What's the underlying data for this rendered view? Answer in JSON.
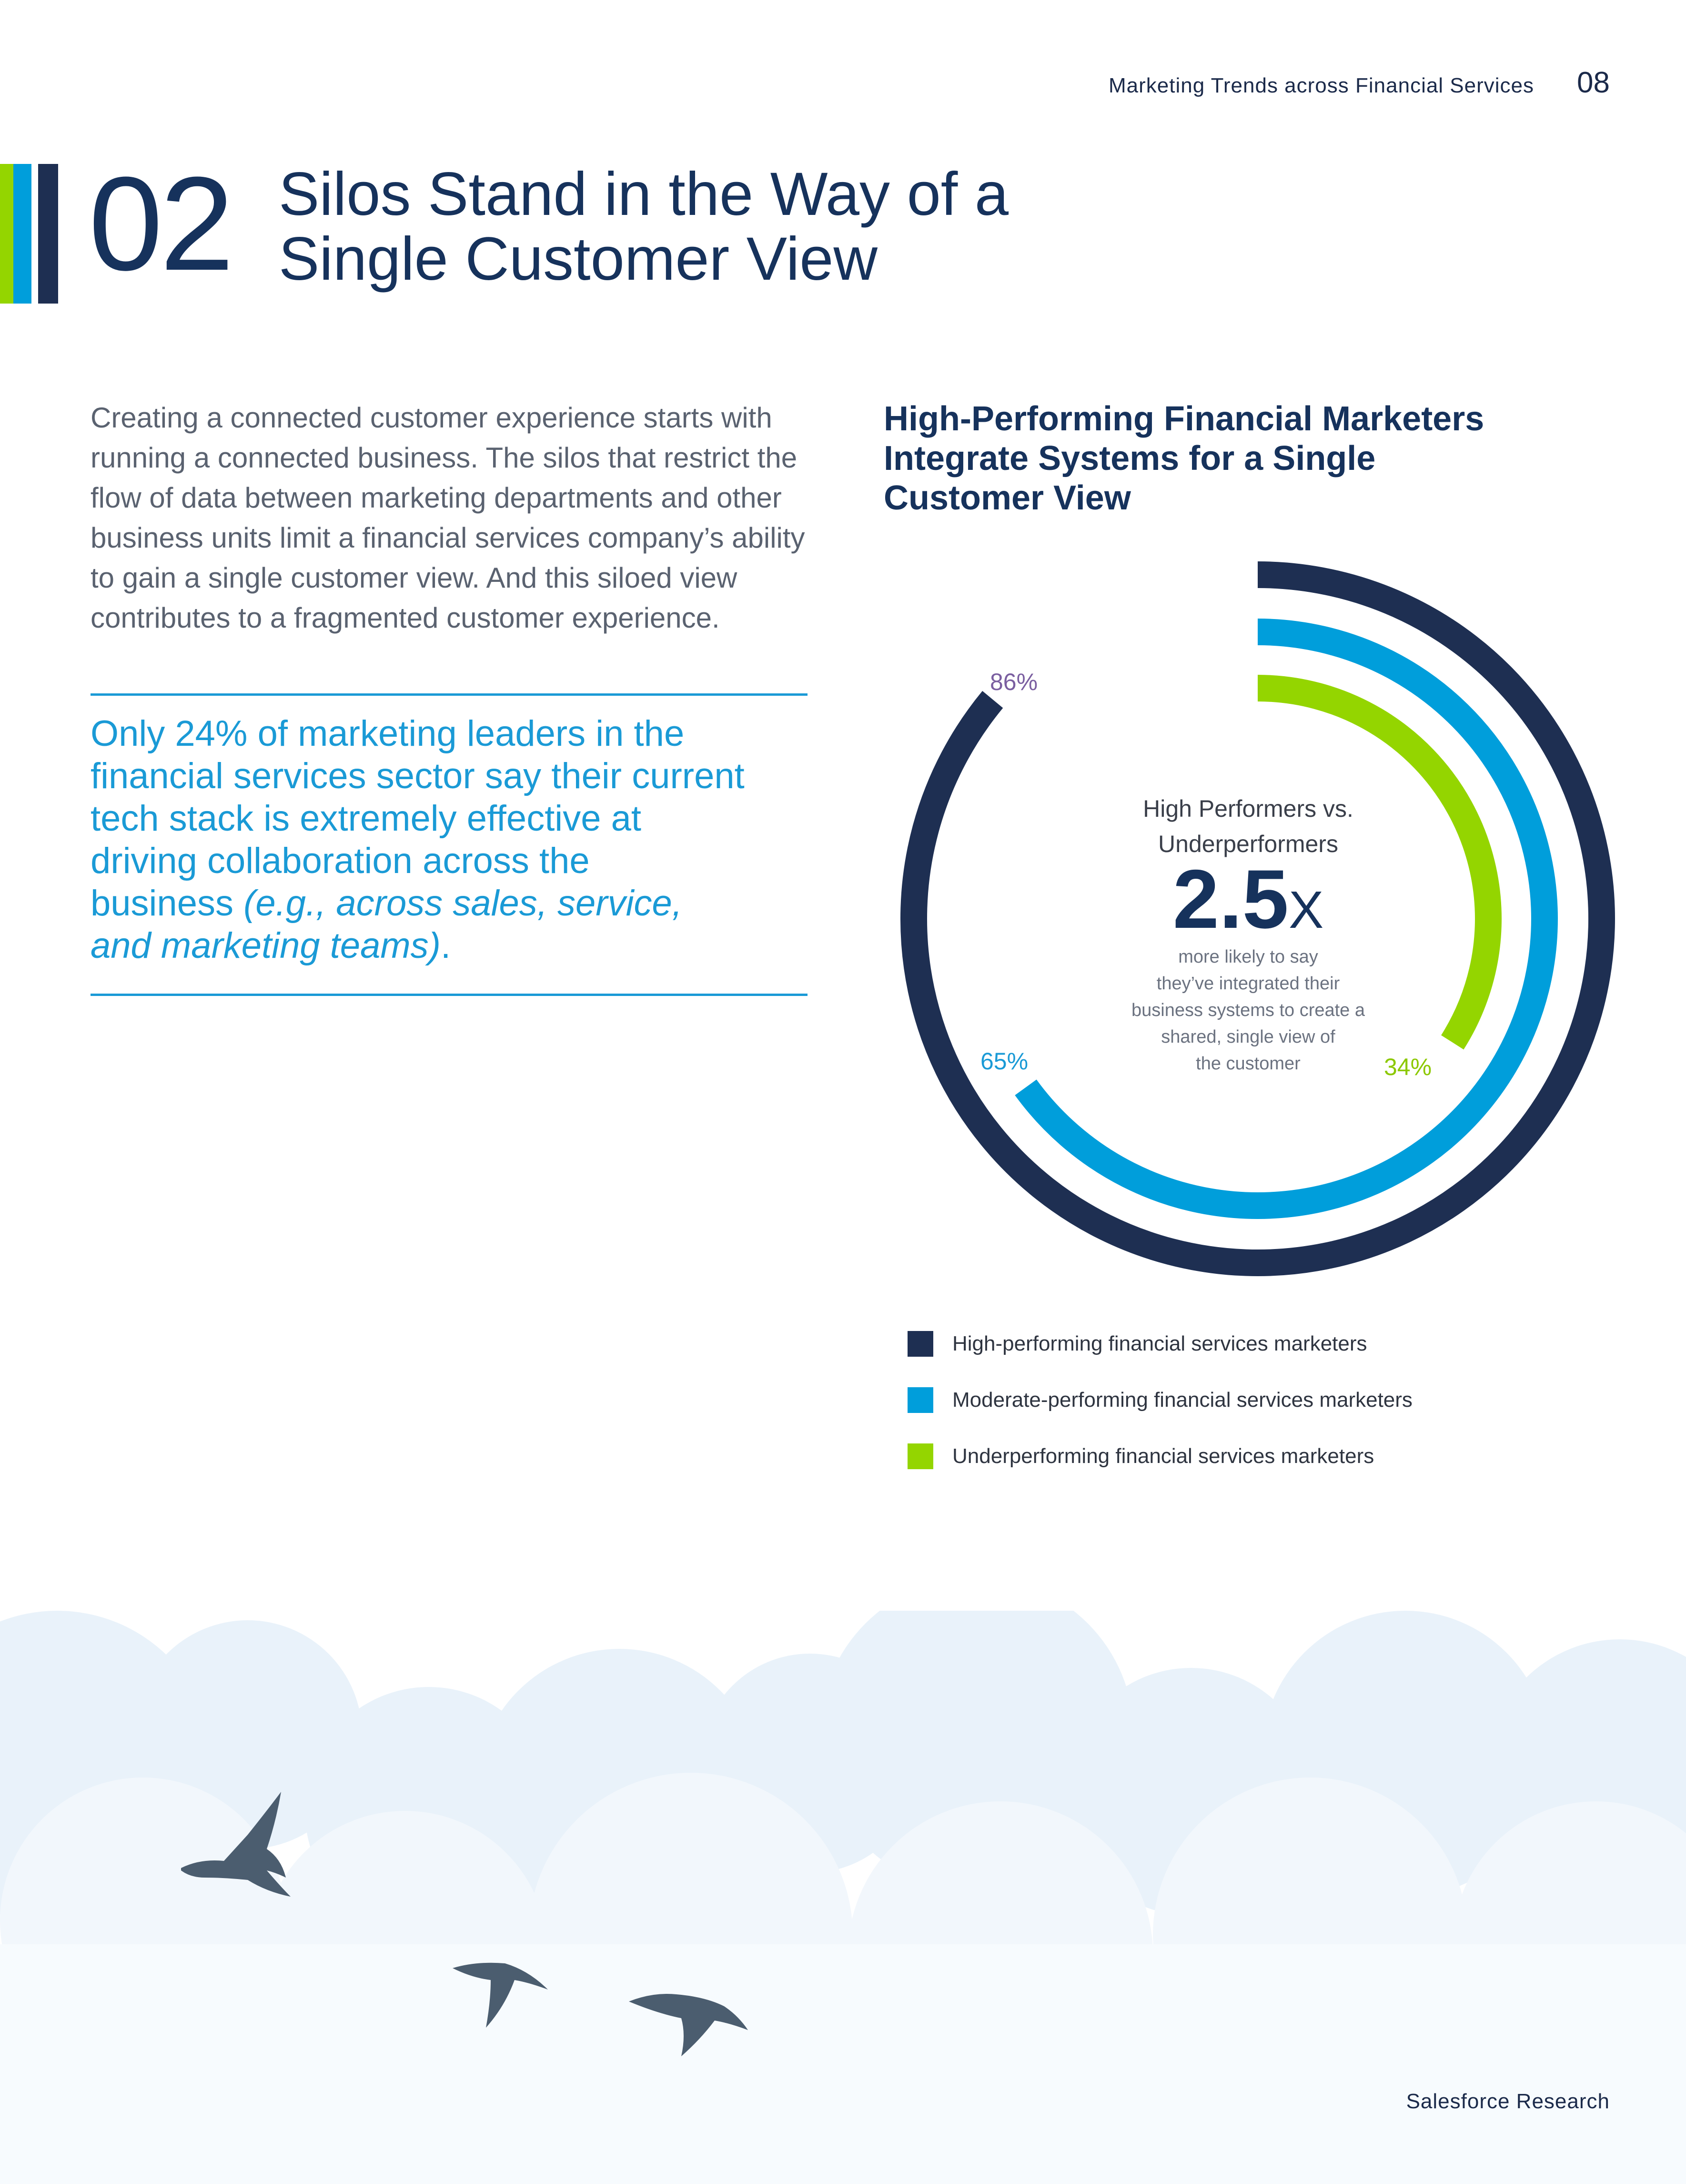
{
  "header": {
    "doc_title": "Marketing Trends across Financial Services",
    "page_number": "08"
  },
  "section": {
    "number": "02",
    "title_line1": "Silos Stand in the Way of a",
    "title_line2": "Single Customer View"
  },
  "intro_lines": [
    "Creating a connected customer experience starts with",
    "running a connected business. The silos that restrict the",
    "flow of data between marketing departments and other",
    "business units limit a financial services company’s ability",
    "to gain a single customer view. And this siloed view",
    "contributes to a fragmented customer experience."
  ],
  "callout": {
    "lines": [
      "Only 24% of marketing leaders in the",
      "financial services sector say their current",
      "tech stack is extremely effective at",
      "driving collaboration across the"
    ],
    "line5_plain": "business ",
    "line5_italic": "(e.g., across sales, service,",
    "line6_italic": "and marketing teams)",
    "line6_tail": "."
  },
  "colors": {
    "navy": "#1e2f52",
    "blue": "#009edb",
    "green": "#94d500",
    "pct_purple": "#7a5ea0"
  },
  "chart_data": {
    "type": "radial-bar",
    "title_lines": [
      "High-Performing Financial Marketers",
      "Integrate Systems for a Single",
      "Customer View"
    ],
    "series": [
      {
        "name": "High-performing financial services marketers",
        "value": 86,
        "label": "86%",
        "color": "#1e2f52"
      },
      {
        "name": "Moderate-performing financial services marketers",
        "value": 65,
        "label": "65%",
        "color": "#009edb"
      },
      {
        "name": "Underperforming financial services marketers",
        "value": 34,
        "label": "34%",
        "color": "#94d500"
      }
    ],
    "center": {
      "title_line1": "High Performers vs.",
      "title_line2": "Underperformers",
      "big_value": "2.5",
      "multiplier": "X",
      "desc_lines": [
        "more likely to say",
        "they’ve integrated their",
        "business systems to create a",
        "shared, single view of",
        "the customer"
      ]
    }
  },
  "footer": {
    "brand": "Salesforce Research"
  }
}
